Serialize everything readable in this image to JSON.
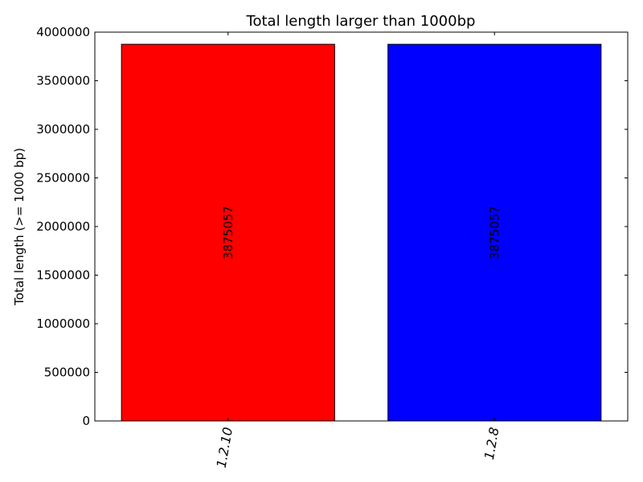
{
  "chart_data": {
    "type": "bar",
    "title": "Total length larger than 1000bp",
    "xlabel": "",
    "ylabel": "Total length (>= 1000 bp)",
    "categories": [
      "1.2.10",
      "1.2.8"
    ],
    "values": [
      3875057,
      3875057
    ],
    "data_labels": [
      "3875057",
      "3875057"
    ],
    "bar_colors": [
      "#ff0000",
      "#0000ff"
    ],
    "ylim": [
      0,
      4000000
    ],
    "yticks": [
      {
        "value": 0,
        "label": "0"
      },
      {
        "value": 500000,
        "label": "500000"
      },
      {
        "value": 1000000,
        "label": "1000000"
      },
      {
        "value": 1500000,
        "label": "1500000"
      },
      {
        "value": 2000000,
        "label": "2000000"
      },
      {
        "value": 2500000,
        "label": "2500000"
      },
      {
        "value": 3000000,
        "label": "3000000"
      },
      {
        "value": 3500000,
        "label": "3500000"
      },
      {
        "value": 4000000,
        "label": "4000000"
      }
    ],
    "grid": false,
    "legend": "none"
  }
}
